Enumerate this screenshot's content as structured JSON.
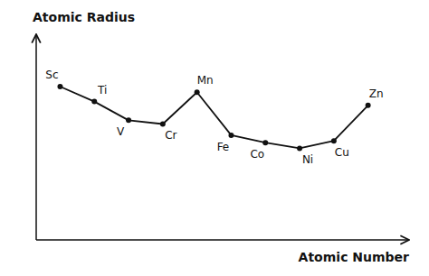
{
  "chart_data": {
    "type": "line",
    "x": [
      1,
      2,
      3,
      4,
      5,
      6,
      7,
      8,
      9,
      10
    ],
    "values": [
      0.82,
      0.74,
      0.64,
      0.62,
      0.79,
      0.56,
      0.52,
      0.49,
      0.53,
      0.72
    ],
    "annotations": [
      "Sc",
      "Ti",
      "V",
      "Cr",
      "Mn",
      "Fe",
      "Co",
      "Ni",
      "Cu",
      "Zn"
    ],
    "xlabel": "Atomic Number",
    "ylabel": "Atomic Radius",
    "xlim": [
      0.3,
      11.2
    ],
    "ylim": [
      0.0,
      1.1
    ],
    "color": "#111111",
    "marker": "circle",
    "grid": false,
    "tick_labels": false
  }
}
